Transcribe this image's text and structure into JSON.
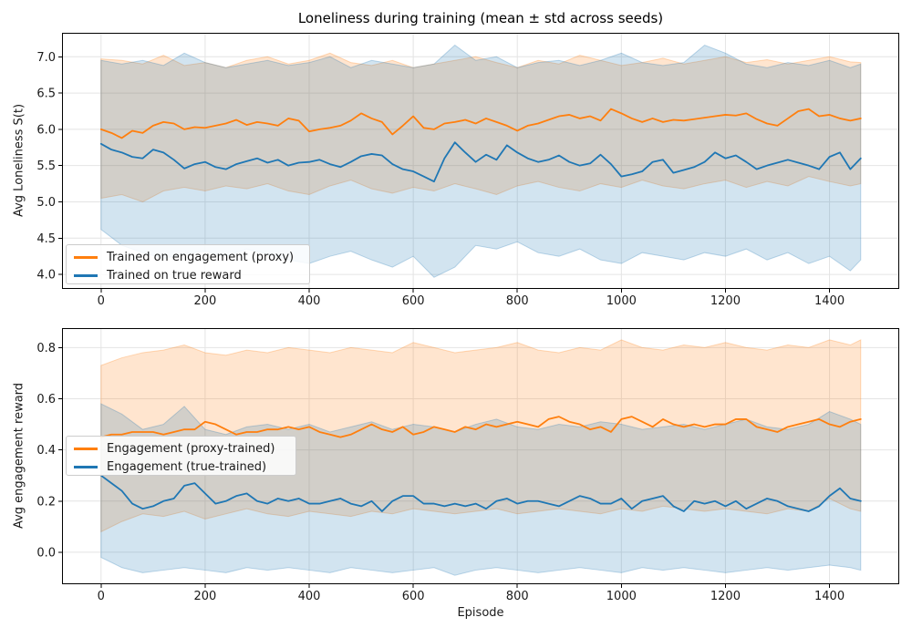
{
  "style": {
    "proxy_color": "#ff7f0e",
    "true_color": "#1f77b4",
    "band_alpha": 0.2,
    "grid_color": "#e4e4e4",
    "axis_color": "#000000",
    "text_color": "#1a1a1a",
    "line_width": 1.8
  },
  "chart_data": [
    {
      "type": "line",
      "title": "Loneliness during training (mean ± std across seeds)",
      "xlabel": "",
      "ylabel": "Avg Loneliness S(t)",
      "xlim": [
        -75,
        1534
      ],
      "ylim": [
        3.8,
        7.33
      ],
      "x_end": 1460,
      "xticks": [
        "0",
        "200",
        "400",
        "600",
        "800",
        "1000",
        "1200",
        "1400"
      ],
      "yticks": [
        "4.0",
        "4.5",
        "5.0",
        "5.5",
        "6.0",
        "6.5",
        "7.0"
      ],
      "grid": true,
      "legend_loc": "lower left",
      "series": [
        {
          "key": "proxy",
          "name": "Trained on engagement (proxy)",
          "color": "#ff7f0e",
          "x_start": 0,
          "x_step": 20,
          "mean": [
            6.0,
            5.95,
            5.88,
            5.98,
            5.95,
            6.05,
            6.1,
            6.08,
            6.0,
            6.03,
            6.02,
            6.05,
            6.08,
            6.13,
            6.06,
            6.1,
            6.08,
            6.05,
            6.15,
            6.12,
            5.97,
            6.0,
            6.02,
            6.05,
            6.12,
            6.22,
            6.15,
            6.1,
            5.93,
            6.05,
            6.18,
            6.02,
            6.0,
            6.08,
            6.1,
            6.13,
            6.08,
            6.15,
            6.1,
            6.05,
            5.98,
            6.05,
            6.08,
            6.13,
            6.18,
            6.2,
            6.15,
            6.18,
            6.12,
            6.28,
            6.22,
            6.15,
            6.1,
            6.15,
            6.1,
            6.13,
            6.12,
            6.14,
            6.16,
            6.18,
            6.2,
            6.19,
            6.22,
            6.14,
            6.08,
            6.05,
            6.15,
            6.25,
            6.28,
            6.18,
            6.2,
            6.15,
            6.12,
            6.15
          ],
          "band": {
            "x_start": 0,
            "x_step": 40,
            "upper": [
              6.97,
              6.95,
              6.9,
              7.02,
              6.88,
              6.92,
              6.85,
              6.95,
              7.0,
              6.9,
              6.95,
              7.05,
              6.92,
              6.88,
              6.95,
              6.85,
              6.9,
              6.95,
              7.0,
              6.92,
              6.85,
              6.95,
              6.9,
              7.02,
              6.95,
              6.88,
              6.92,
              6.98,
              6.9,
              6.95,
              7.0,
              6.92,
              6.96,
              6.9,
              6.95,
              7.0,
              6.93,
              6.92
            ],
            "lower": [
              5.05,
              5.1,
              5.0,
              5.15,
              5.2,
              5.15,
              5.22,
              5.18,
              5.25,
              5.15,
              5.1,
              5.22,
              5.3,
              5.18,
              5.12,
              5.2,
              5.15,
              5.25,
              5.18,
              5.1,
              5.22,
              5.28,
              5.2,
              5.15,
              5.25,
              5.2,
              5.3,
              5.22,
              5.18,
              5.25,
              5.3,
              5.2,
              5.28,
              5.22,
              5.35,
              5.28,
              5.22,
              5.25
            ]
          }
        },
        {
          "key": "true",
          "name": "Trained on true reward",
          "color": "#1f77b4",
          "x_start": 0,
          "x_step": 20,
          "mean": [
            5.8,
            5.72,
            5.68,
            5.62,
            5.6,
            5.72,
            5.68,
            5.58,
            5.46,
            5.52,
            5.55,
            5.48,
            5.45,
            5.52,
            5.56,
            5.6,
            5.54,
            5.58,
            5.5,
            5.54,
            5.55,
            5.58,
            5.52,
            5.48,
            5.55,
            5.63,
            5.66,
            5.64,
            5.52,
            5.45,
            5.42,
            5.35,
            5.28,
            5.6,
            5.82,
            5.68,
            5.55,
            5.65,
            5.58,
            5.78,
            5.68,
            5.6,
            5.55,
            5.58,
            5.64,
            5.55,
            5.5,
            5.53,
            5.65,
            5.52,
            5.35,
            5.38,
            5.42,
            5.55,
            5.58,
            5.4,
            5.44,
            5.48,
            5.55,
            5.68,
            5.6,
            5.64,
            5.55,
            5.45,
            5.5,
            5.54,
            5.58,
            5.54,
            5.5,
            5.45,
            5.62,
            5.68,
            5.45,
            5.6
          ],
          "band": {
            "x_start": 0,
            "x_step": 40,
            "upper": [
              6.95,
              6.9,
              6.95,
              6.88,
              7.05,
              6.92,
              6.85,
              6.9,
              6.95,
              6.88,
              6.92,
              7.0,
              6.85,
              6.95,
              6.9,
              6.85,
              6.9,
              7.16,
              6.95,
              7.0,
              6.85,
              6.92,
              6.95,
              6.88,
              6.95,
              7.05,
              6.92,
              6.88,
              6.92,
              7.16,
              7.05,
              6.9,
              6.85,
              6.92,
              6.88,
              6.95,
              6.85,
              6.9
            ],
            "lower": [
              4.62,
              4.4,
              4.3,
              4.22,
              4.28,
              4.32,
              4.25,
              4.35,
              4.28,
              4.2,
              4.15,
              4.25,
              4.32,
              4.2,
              4.1,
              4.25,
              3.96,
              4.1,
              4.4,
              4.35,
              4.45,
              4.3,
              4.25,
              4.35,
              4.2,
              4.15,
              4.3,
              4.25,
              4.2,
              4.3,
              4.25,
              4.35,
              4.2,
              4.3,
              4.15,
              4.25,
              4.05,
              4.2
            ]
          }
        }
      ]
    },
    {
      "type": "line",
      "title": "",
      "xlabel": "Episode",
      "ylabel": "Avg engagement reward",
      "xlim": [
        -75,
        1534
      ],
      "ylim": [
        -0.125,
        0.876
      ],
      "x_end": 1460,
      "xticks": [
        "0",
        "200",
        "400",
        "600",
        "800",
        "1000",
        "1200",
        "1400"
      ],
      "yticks": [
        "0.0",
        "0.2",
        "0.4",
        "0.6",
        "0.8"
      ],
      "grid": true,
      "legend_loc": "center left",
      "series": [
        {
          "key": "proxy",
          "name": "Engagement (proxy-trained)",
          "color": "#ff7f0e",
          "x_start": 0,
          "x_step": 20,
          "mean": [
            0.45,
            0.46,
            0.46,
            0.47,
            0.47,
            0.47,
            0.46,
            0.47,
            0.48,
            0.48,
            0.51,
            0.5,
            0.48,
            0.46,
            0.47,
            0.47,
            0.48,
            0.48,
            0.49,
            0.48,
            0.49,
            0.47,
            0.46,
            0.45,
            0.46,
            0.48,
            0.5,
            0.48,
            0.47,
            0.49,
            0.46,
            0.47,
            0.49,
            0.48,
            0.47,
            0.49,
            0.48,
            0.5,
            0.49,
            0.5,
            0.51,
            0.5,
            0.49,
            0.52,
            0.53,
            0.51,
            0.5,
            0.48,
            0.49,
            0.47,
            0.52,
            0.53,
            0.51,
            0.49,
            0.52,
            0.5,
            0.49,
            0.5,
            0.49,
            0.5,
            0.5,
            0.52,
            0.52,
            0.49,
            0.48,
            0.47,
            0.49,
            0.5,
            0.51,
            0.52,
            0.5,
            0.49,
            0.51,
            0.52
          ],
          "band": {
            "x_start": 0,
            "x_step": 40,
            "upper": [
              0.73,
              0.76,
              0.78,
              0.79,
              0.81,
              0.78,
              0.77,
              0.79,
              0.78,
              0.8,
              0.79,
              0.78,
              0.8,
              0.79,
              0.78,
              0.82,
              0.8,
              0.78,
              0.79,
              0.8,
              0.82,
              0.79,
              0.78,
              0.8,
              0.79,
              0.83,
              0.8,
              0.79,
              0.81,
              0.8,
              0.82,
              0.8,
              0.79,
              0.81,
              0.8,
              0.83,
              0.81,
              0.83
            ],
            "lower": [
              0.08,
              0.12,
              0.15,
              0.14,
              0.16,
              0.13,
              0.15,
              0.17,
              0.15,
              0.14,
              0.16,
              0.15,
              0.14,
              0.16,
              0.15,
              0.17,
              0.16,
              0.15,
              0.16,
              0.17,
              0.15,
              0.16,
              0.17,
              0.16,
              0.15,
              0.17,
              0.16,
              0.18,
              0.17,
              0.16,
              0.17,
              0.16,
              0.15,
              0.17,
              0.16,
              0.21,
              0.17,
              0.16
            ]
          }
        },
        {
          "key": "true",
          "name": "Engagement (true-trained)",
          "color": "#1f77b4",
          "x_start": 0,
          "x_step": 20,
          "mean": [
            0.3,
            0.27,
            0.24,
            0.19,
            0.17,
            0.18,
            0.2,
            0.21,
            0.26,
            0.27,
            0.23,
            0.19,
            0.2,
            0.22,
            0.23,
            0.2,
            0.19,
            0.21,
            0.2,
            0.21,
            0.19,
            0.19,
            0.2,
            0.21,
            0.19,
            0.18,
            0.2,
            0.16,
            0.2,
            0.22,
            0.22,
            0.19,
            0.19,
            0.18,
            0.19,
            0.18,
            0.19,
            0.17,
            0.2,
            0.21,
            0.19,
            0.2,
            0.2,
            0.19,
            0.18,
            0.2,
            0.22,
            0.21,
            0.19,
            0.19,
            0.21,
            0.17,
            0.2,
            0.21,
            0.22,
            0.18,
            0.16,
            0.2,
            0.19,
            0.2,
            0.18,
            0.2,
            0.17,
            0.19,
            0.21,
            0.2,
            0.18,
            0.17,
            0.16,
            0.18,
            0.22,
            0.25,
            0.21,
            0.2
          ],
          "band": {
            "x_start": 0,
            "x_step": 40,
            "upper": [
              0.58,
              0.54,
              0.48,
              0.5,
              0.57,
              0.48,
              0.46,
              0.49,
              0.5,
              0.48,
              0.5,
              0.47,
              0.49,
              0.51,
              0.48,
              0.5,
              0.49,
              0.47,
              0.5,
              0.52,
              0.49,
              0.48,
              0.5,
              0.49,
              0.51,
              0.5,
              0.48,
              0.49,
              0.5,
              0.48,
              0.5,
              0.52,
              0.49,
              0.48,
              0.5,
              0.55,
              0.52,
              0.5
            ],
            "lower": [
              -0.02,
              -0.06,
              -0.08,
              -0.07,
              -0.06,
              -0.07,
              -0.08,
              -0.06,
              -0.07,
              -0.06,
              -0.07,
              -0.08,
              -0.06,
              -0.07,
              -0.08,
              -0.07,
              -0.06,
              -0.09,
              -0.07,
              -0.06,
              -0.07,
              -0.08,
              -0.07,
              -0.06,
              -0.07,
              -0.08,
              -0.06,
              -0.07,
              -0.06,
              -0.07,
              -0.08,
              -0.07,
              -0.06,
              -0.07,
              -0.06,
              -0.05,
              -0.06,
              -0.07
            ]
          }
        }
      ]
    }
  ]
}
